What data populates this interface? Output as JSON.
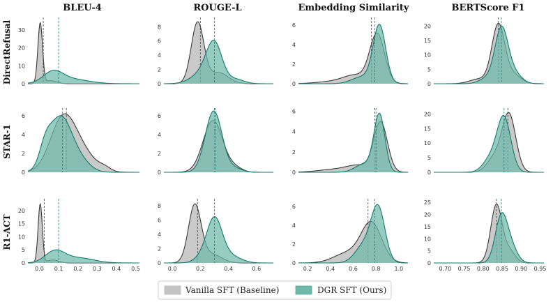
{
  "chart_data": {
    "type": "area",
    "title": "",
    "columns": [
      "BLEU-4",
      "ROUGE-L",
      "Embedding Similarity",
      "BERTScore F1"
    ],
    "rows": [
      "DirectRefusal",
      "STAR-1",
      "R1-ACT"
    ],
    "legend": {
      "placement": "bottom-center",
      "entries": [
        {
          "label": "Vanilla SFT (Baseline)",
          "fill": "#c4c4c4",
          "line": "#3a3a3a"
        },
        {
          "label": "DGR SFT (Ours)",
          "fill": "#6fb8ab",
          "line": "#137a6d"
        }
      ]
    },
    "x_axes": [
      {
        "min": -0.06,
        "max": 0.52,
        "ticks": [
          0.0,
          0.1,
          0.2,
          0.3,
          0.4,
          0.5
        ],
        "tick_labels": [
          "0.0",
          "0.1",
          "0.2",
          "0.3",
          "0.4",
          "0.5"
        ]
      },
      {
        "min": -0.06,
        "max": 0.72,
        "ticks": [
          0.0,
          0.2,
          0.4,
          0.6
        ],
        "tick_labels": [
          "0.0",
          "0.2",
          "0.4",
          "0.6"
        ]
      },
      {
        "min": 0.12,
        "max": 1.08,
        "ticks": [
          0.2,
          0.4,
          0.6,
          0.8,
          1.0
        ],
        "tick_labels": [
          "0.2",
          "0.4",
          "0.6",
          "0.8",
          "1.0"
        ]
      },
      {
        "min": 0.67,
        "max": 0.96,
        "ticks": [
          0.7,
          0.75,
          0.8,
          0.85,
          0.9,
          0.95
        ],
        "tick_labels": [
          "0.70",
          "0.75",
          "0.80",
          "0.85",
          "0.90",
          "0.95"
        ]
      }
    ],
    "panels": [
      {
        "row": 0,
        "col": 0,
        "ymax": 37,
        "yticks": [
          0,
          10,
          20,
          30
        ],
        "series": [
          {
            "name": "Vanilla SFT (Baseline)",
            "mean": 0.02,
            "comps": [
              [
                0.004,
                0.012,
                1.0
              ],
              [
                0.06,
                0.03,
                0.05
              ]
            ],
            "peak": 34
          },
          {
            "name": "DGR SFT (Ours)",
            "mean": 0.1,
            "comps": [
              [
                0.07,
                0.05,
                1.0
              ],
              [
                0.16,
                0.09,
                0.45
              ]
            ],
            "peak": 7.5
          }
        ]
      },
      {
        "row": 0,
        "col": 1,
        "ymax": 9.3,
        "yticks": [
          0,
          2,
          4,
          6,
          8
        ],
        "series": [
          {
            "name": "Vanilla SFT (Baseline)",
            "mean": 0.2,
            "comps": [
              [
                0.18,
                0.045,
                1.0
              ],
              [
                0.33,
                0.07,
                0.18
              ]
            ],
            "peak": 8.7
          },
          {
            "name": "DGR SFT (Ours)",
            "mean": 0.3,
            "comps": [
              [
                0.3,
                0.055,
                1.0
              ],
              [
                0.22,
                0.08,
                0.3
              ],
              [
                0.45,
                0.06,
                0.12
              ]
            ],
            "peak": 6.1
          }
        ]
      },
      {
        "row": 0,
        "col": 2,
        "ymax": 6.8,
        "yticks": [
          0,
          2,
          4,
          6
        ],
        "series": [
          {
            "name": "Vanilla SFT (Baseline)",
            "mean": 0.76,
            "comps": [
              [
                0.81,
                0.065,
                1.0
              ],
              [
                0.62,
                0.1,
                0.15
              ],
              [
                0.45,
                0.15,
                0.05
              ]
            ],
            "peak": 5.2
          },
          {
            "name": "DGR SFT (Ours)",
            "mean": 0.79,
            "comps": [
              [
                0.83,
                0.055,
                1.0
              ],
              [
                0.68,
                0.09,
                0.12
              ]
            ],
            "peak": 6.1
          }
        ]
      },
      {
        "row": 0,
        "col": 3,
        "ymax": 23,
        "yticks": [
          0,
          5,
          10,
          15,
          20
        ],
        "series": [
          {
            "name": "Vanilla SFT (Baseline)",
            "mean": 0.84,
            "comps": [
              [
                0.84,
                0.017,
                1.0
              ],
              [
                0.79,
                0.025,
                0.08
              ],
              [
                0.88,
                0.02,
                0.15
              ]
            ],
            "peak": 21
          },
          {
            "name": "DGR SFT (Ours)",
            "mean": 0.848,
            "comps": [
              [
                0.848,
                0.017,
                1.0
              ],
              [
                0.88,
                0.02,
                0.2
              ],
              [
                0.81,
                0.02,
                0.1
              ]
            ],
            "peak": 20
          }
        ]
      },
      {
        "row": 1,
        "col": 0,
        "ymax": 6.8,
        "yticks": [
          0,
          2,
          4,
          6
        ],
        "series": [
          {
            "name": "Vanilla SFT (Baseline)",
            "mean": 0.14,
            "comps": [
              [
                0.12,
                0.065,
                1.0
              ],
              [
                0.22,
                0.07,
                0.35
              ],
              [
                0.34,
                0.03,
                0.06
              ]
            ],
            "peak": 6.2
          },
          {
            "name": "DGR SFT (Ours)",
            "mean": 0.12,
            "comps": [
              [
                0.11,
                0.06,
                1.0
              ],
              [
                0.03,
                0.03,
                0.3
              ],
              [
                0.22,
                0.05,
                0.15
              ]
            ],
            "peak": 6.0
          }
        ]
      },
      {
        "row": 1,
        "col": 1,
        "ymax": 6.8,
        "yticks": [
          0,
          2,
          4,
          6
        ],
        "series": [
          {
            "name": "Vanilla SFT (Baseline)",
            "mean": 0.3,
            "comps": [
              [
                0.29,
                0.07,
                1.0
              ],
              [
                0.45,
                0.05,
                0.08
              ]
            ],
            "peak": 5.5
          },
          {
            "name": "DGR SFT (Ours)",
            "mean": 0.305,
            "comps": [
              [
                0.295,
                0.06,
                1.0
              ],
              [
                0.45,
                0.05,
                0.06
              ]
            ],
            "peak": 6.5
          }
        ]
      },
      {
        "row": 1,
        "col": 2,
        "ymax": 6.3,
        "yticks": [
          0,
          2,
          4,
          6
        ],
        "series": [
          {
            "name": "Vanilla SFT (Baseline)",
            "mean": 0.79,
            "comps": [
              [
                0.84,
                0.06,
                1.0
              ],
              [
                0.65,
                0.1,
                0.12
              ],
              [
                0.45,
                0.15,
                0.06
              ]
            ],
            "peak": 5.0
          },
          {
            "name": "DGR SFT (Ours)",
            "mean": 0.8,
            "comps": [
              [
                0.83,
                0.048,
                1.0
              ],
              [
                0.7,
                0.08,
                0.15
              ]
            ],
            "peak": 5.8
          }
        ]
      },
      {
        "row": 1,
        "col": 3,
        "ymax": 22,
        "yticks": [
          0,
          5,
          10,
          15,
          20
        ],
        "series": [
          {
            "name": "Vanilla SFT (Baseline)",
            "mean": 0.865,
            "comps": [
              [
                0.868,
                0.018,
                1.0
              ],
              [
                0.83,
                0.02,
                0.25
              ]
            ],
            "peak": 20.5
          },
          {
            "name": "DGR SFT (Ours)",
            "mean": 0.855,
            "comps": [
              [
                0.855,
                0.018,
                1.0
              ],
              [
                0.82,
                0.02,
                0.25
              ]
            ],
            "peak": 19.5
          }
        ]
      },
      {
        "row": 2,
        "col": 0,
        "ymax": 24.5,
        "yticks": [
          0,
          5,
          10,
          15,
          20
        ],
        "series": [
          {
            "name": "Vanilla SFT (Baseline)",
            "mean": 0.025,
            "comps": [
              [
                0.004,
                0.011,
                1.0
              ],
              [
                0.07,
                0.03,
                0.05
              ]
            ],
            "peak": 22.5
          },
          {
            "name": "DGR SFT (Ours)",
            "mean": 0.1,
            "comps": [
              [
                0.08,
                0.05,
                1.0
              ],
              [
                0.2,
                0.08,
                0.45
              ]
            ],
            "peak": 5.0
          }
        ]
      },
      {
        "row": 2,
        "col": 1,
        "ymax": 9.0,
        "yticks": [
          0,
          2,
          4,
          6,
          8
        ],
        "series": [
          {
            "name": "Vanilla SFT (Baseline)",
            "mean": 0.18,
            "comps": [
              [
                0.16,
                0.045,
                1.0
              ],
              [
                0.28,
                0.07,
                0.15
              ]
            ],
            "peak": 8.3
          },
          {
            "name": "DGR SFT (Ours)",
            "mean": 0.3,
            "comps": [
              [
                0.3,
                0.055,
                1.0
              ],
              [
                0.42,
                0.07,
                0.15
              ],
              [
                0.2,
                0.05,
                0.1
              ]
            ],
            "peak": 6.5
          }
        ]
      },
      {
        "row": 2,
        "col": 2,
        "ymax": 6.8,
        "yticks": [
          0,
          2,
          4,
          6
        ],
        "series": [
          {
            "name": "Vanilla SFT (Baseline)",
            "mean": 0.73,
            "comps": [
              [
                0.76,
                0.09,
                1.0
              ],
              [
                0.55,
                0.12,
                0.25
              ]
            ],
            "peak": 4.4
          },
          {
            "name": "DGR SFT (Ours)",
            "mean": 0.79,
            "comps": [
              [
                0.82,
                0.06,
                1.0
              ],
              [
                0.7,
                0.08,
                0.35
              ]
            ],
            "peak": 6.2
          }
        ]
      },
      {
        "row": 2,
        "col": 3,
        "ymax": 26.5,
        "yticks": [
          0,
          5,
          10,
          15,
          20,
          25
        ],
        "series": [
          {
            "name": "Vanilla SFT (Baseline)",
            "mean": 0.835,
            "comps": [
              [
                0.835,
                0.015,
                1.0
              ],
              [
                0.87,
                0.015,
                0.2
              ]
            ],
            "peak": 24.3
          },
          {
            "name": "DGR SFT (Ours)",
            "mean": 0.848,
            "comps": [
              [
                0.848,
                0.016,
                1.0
              ],
              [
                0.875,
                0.016,
                0.3
              ]
            ],
            "peak": 20.8
          }
        ]
      }
    ]
  }
}
